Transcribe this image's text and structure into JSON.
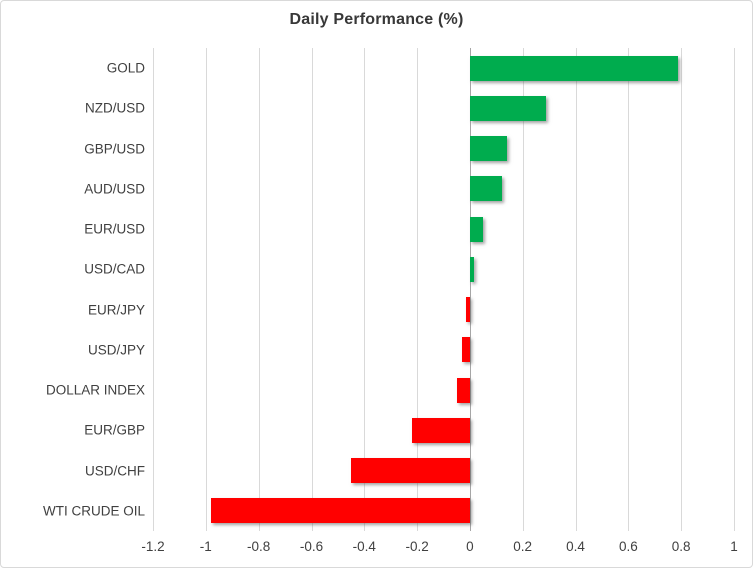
{
  "chart_data": {
    "type": "bar",
    "orientation": "horizontal",
    "title": "Daily Performance (%)",
    "xlabel": "",
    "ylabel": "",
    "categories": [
      "GOLD",
      "NZD/USD",
      "GBP/USD",
      "AUD/USD",
      "EUR/USD",
      "USD/CAD",
      "EUR/JPY",
      "USD/JPY",
      "DOLLAR INDEX",
      "EUR/GBP",
      "USD/CHF",
      "WTI CRUDE OIL"
    ],
    "values": [
      0.79,
      0.29,
      0.14,
      0.12,
      0.05,
      0.015,
      -0.015,
      -0.03,
      -0.05,
      -0.22,
      -0.45,
      -0.98
    ],
    "xlim": [
      -1.2,
      1.0
    ],
    "x_ticks": [
      -1.2,
      -1,
      -0.8,
      -0.6,
      -0.4,
      -0.2,
      0,
      0.2,
      0.4,
      0.6,
      0.8,
      1
    ],
    "x_tick_labels": [
      "-1.2",
      "-1",
      "-0.8",
      "-0.6",
      "-0.4",
      "-0.2",
      "0",
      "0.2",
      "0.4",
      "0.6",
      "0.8",
      "1"
    ],
    "grid": true,
    "legend": false,
    "colors": {
      "positive": "#00AC4E",
      "negative": "#FF0000",
      "gridline": "#D9D9D9",
      "zero_axis": "#A6A6A6",
      "text": "#404040",
      "title_text": "#383838",
      "background": "#FFFFFF",
      "border": "#D9D9D9"
    }
  }
}
